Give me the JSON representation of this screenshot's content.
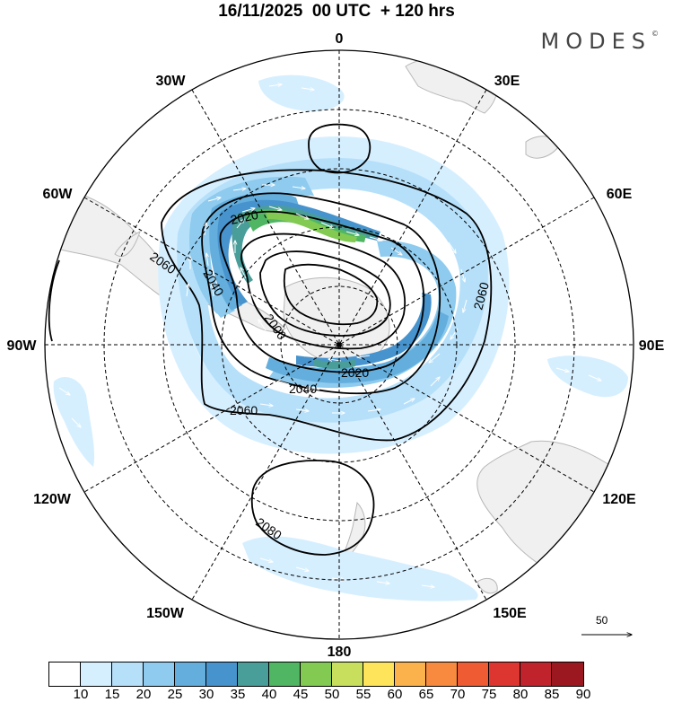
{
  "title": "16/11/2025  00 UTC  + 120 hrs",
  "brand": {
    "name": "MODES",
    "mark": "©"
  },
  "map": {
    "projection": "south-polar-stereographic",
    "longitude_labels": [
      "0",
      "30E",
      "60E",
      "90E",
      "120E",
      "150E",
      "180",
      "150W",
      "120W",
      "90W",
      "60W",
      "30W"
    ],
    "contour_labels": [
      "2020",
      "2020",
      "2040",
      "2040",
      "2060",
      "2060",
      "2060",
      "2000",
      "2080"
    ],
    "wind_reference": {
      "label": "50"
    }
  },
  "legend": {
    "ticks": [
      "10",
      "15",
      "20",
      "25",
      "30",
      "35",
      "40",
      "45",
      "50",
      "55",
      "60",
      "65",
      "70",
      "75",
      "80",
      "85",
      "90"
    ],
    "colors": [
      "#ffffff",
      "#d6efff",
      "#b6e0fa",
      "#8ecbee",
      "#64aedd",
      "#4793cd",
      "#4a9e9a",
      "#50b664",
      "#82ca52",
      "#c7df5c",
      "#fde45a",
      "#fbb24d",
      "#f78a3e",
      "#ef5c33",
      "#dd3530",
      "#c0232b",
      "#9b1820"
    ]
  },
  "colors": {
    "land": "#f0f0f0",
    "coast": "#b8b8b8",
    "grid": "#000000"
  }
}
